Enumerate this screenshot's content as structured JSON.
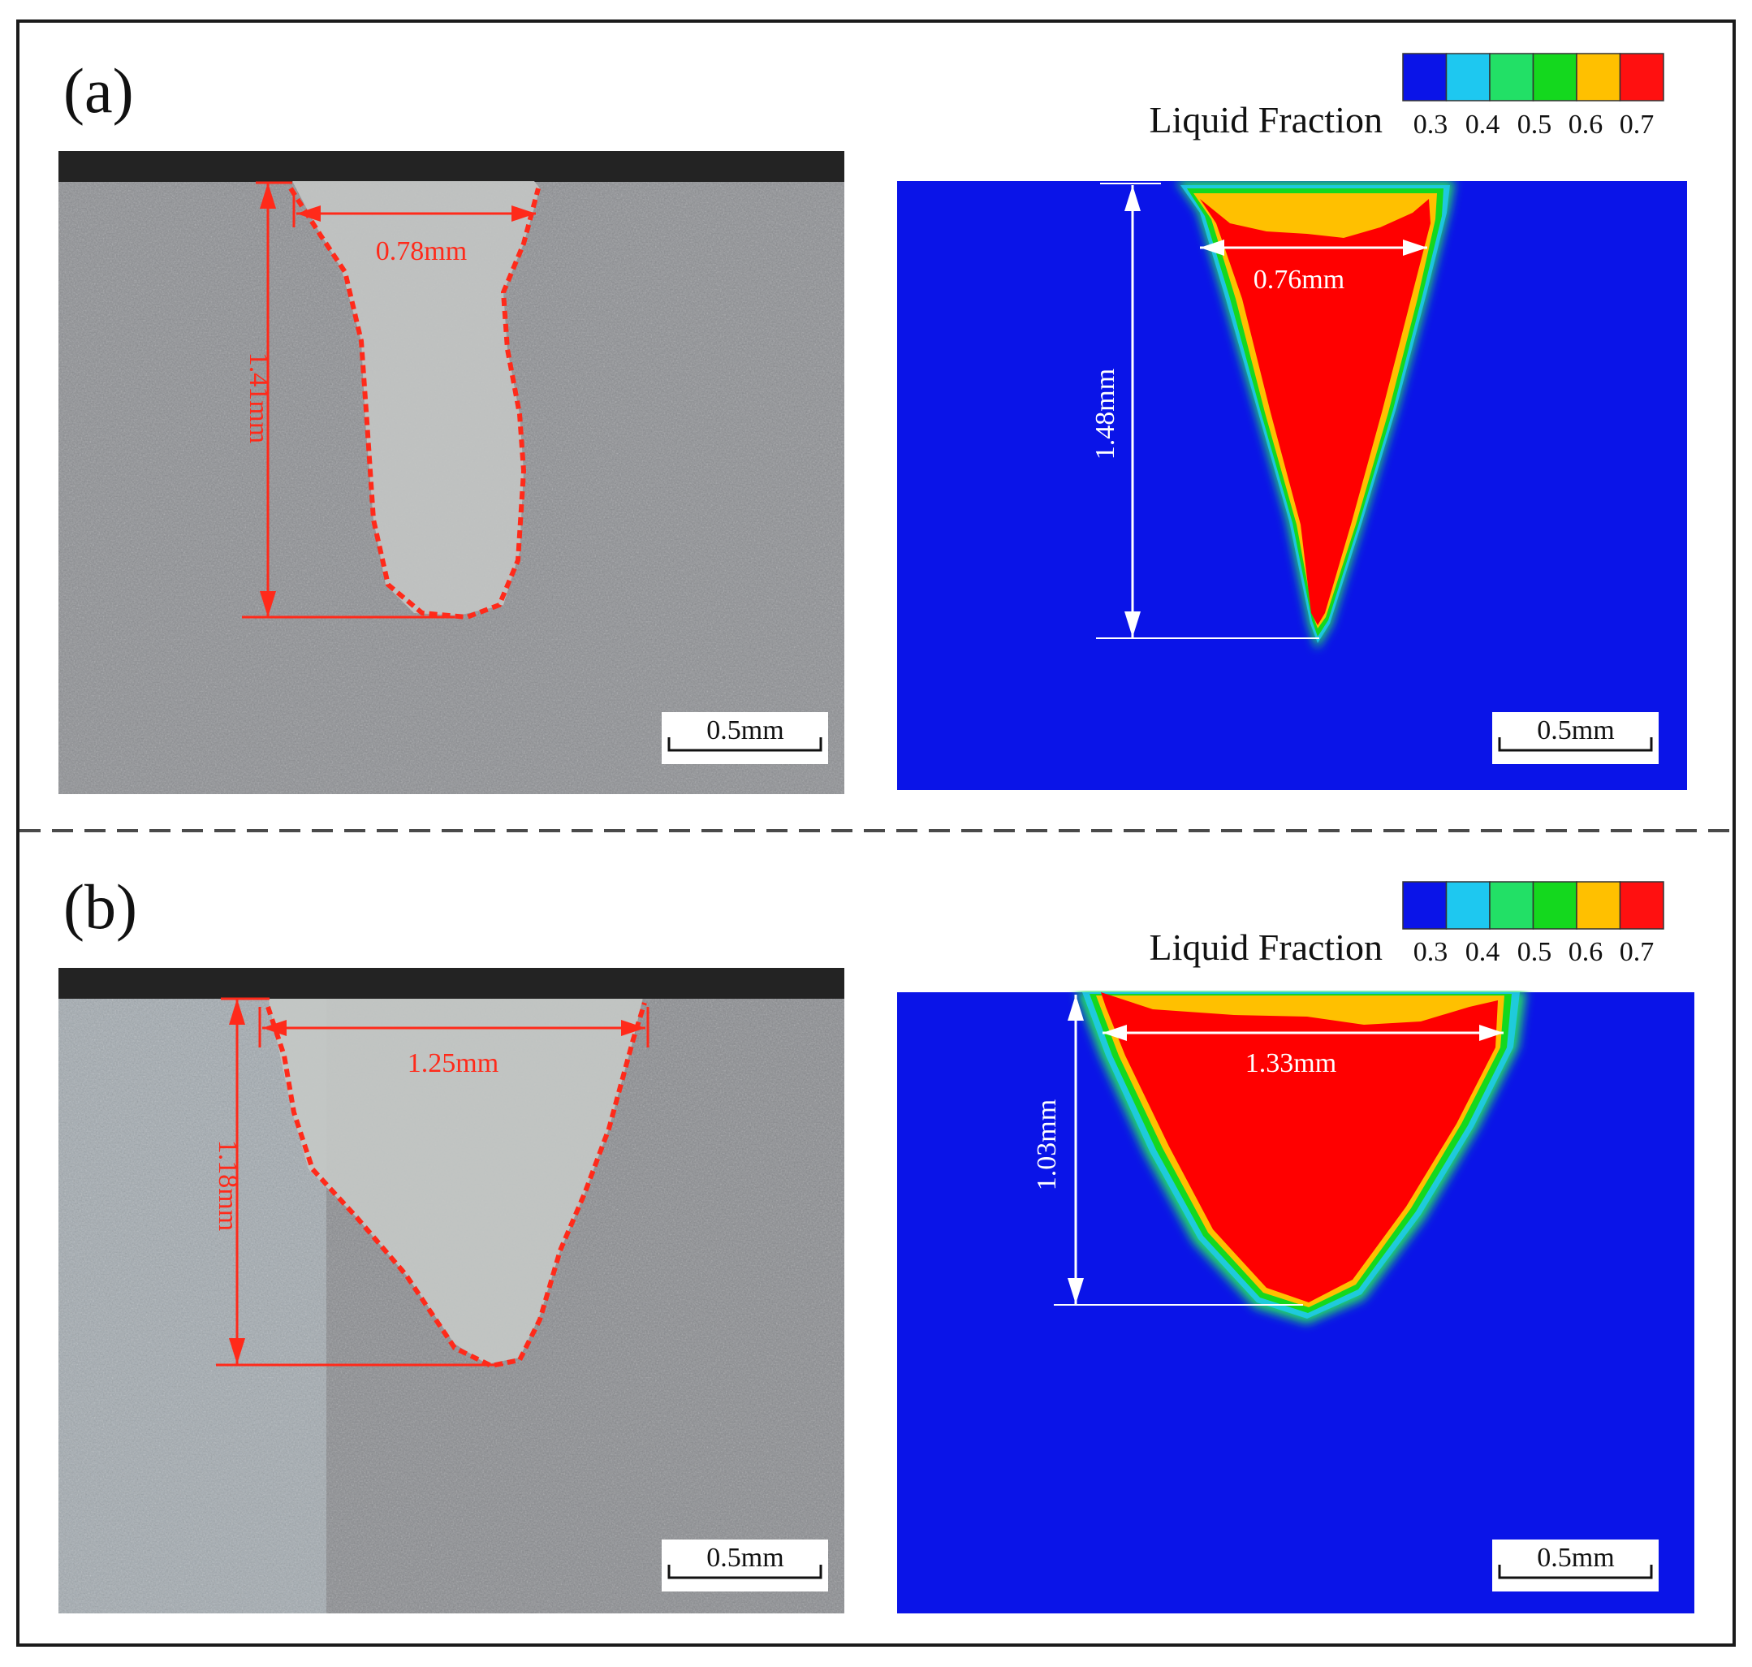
{
  "panels": [
    {
      "label": "(a)",
      "micrograph": {
        "width": "0.78mm",
        "depth": "1.41mm",
        "scale_bar": "0.5mm"
      },
      "simulation": {
        "legend_title": "Liquid Fraction",
        "legend_ticks": [
          "0.3",
          "0.4",
          "0.5",
          "0.6",
          "0.7"
        ],
        "width": "0.76mm",
        "depth": "1.48mm",
        "scale_bar": "0.5mm"
      }
    },
    {
      "label": "(b)",
      "micrograph": {
        "width": "1.25mm",
        "depth": "1.18mm",
        "scale_bar": "0.5mm"
      },
      "simulation": {
        "legend_title": "Liquid Fraction",
        "legend_ticks": [
          "0.3",
          "0.4",
          "0.5",
          "0.6",
          "0.7"
        ],
        "width": "1.33mm",
        "depth": "1.03mm",
        "scale_bar": "0.5mm"
      }
    }
  ],
  "legend_colors": [
    "#0a14e8",
    "#1ec8f0",
    "#22e066",
    "#14d81e",
    "#ffc000",
    "#ff1010"
  ],
  "colors": {
    "annotation_red": "#ff2a1a",
    "sim_blue": "#0a14e8",
    "melt_red": "#ff0000"
  }
}
